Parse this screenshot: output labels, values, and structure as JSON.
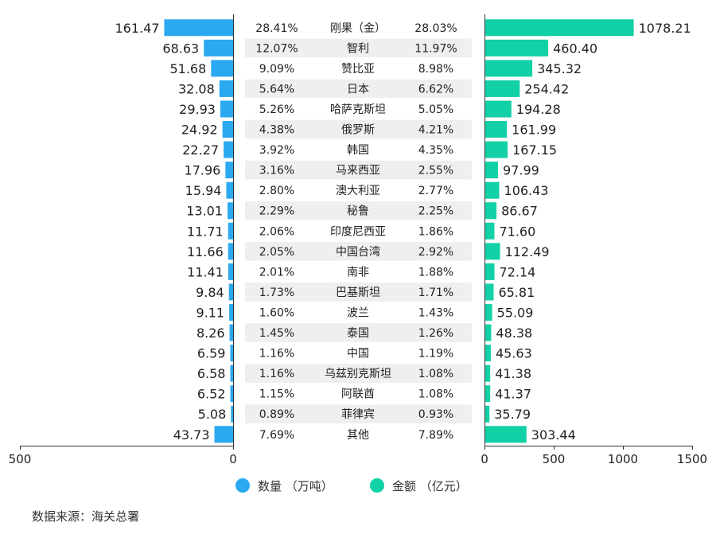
{
  "colors": {
    "quantity": "#2aa9f0",
    "amount": "#12d1a6",
    "stripe": "#efefef",
    "axis": "#333333",
    "text": "#222222"
  },
  "legend": {
    "quantity_label": "数量 （万吨）",
    "amount_label": "金额 （亿元）"
  },
  "source": "数据来源：海关总署",
  "chart_data": {
    "type": "bar",
    "layout": "butterfly",
    "categories": [
      "刚果（金）",
      "智利",
      "赞比亚",
      "日本",
      "哈萨克斯坦",
      "俄罗斯",
      "韩国",
      "马来西亚",
      "澳大利亚",
      "秘鲁",
      "印度尼西亚",
      "中国台湾",
      "南非",
      "巴基斯坦",
      "波兰",
      "泰国",
      "中国",
      "乌兹别克斯坦",
      "阿联酋",
      "菲律宾",
      "其他"
    ],
    "series": [
      {
        "name": "数量 （万吨）",
        "values": [
          161.47,
          68.63,
          51.68,
          32.08,
          29.93,
          24.92,
          22.27,
          17.96,
          15.94,
          13.01,
          11.71,
          11.66,
          11.41,
          9.84,
          9.11,
          8.26,
          6.59,
          6.58,
          6.52,
          5.08,
          43.73
        ],
        "share": [
          "28.41%",
          "12.07%",
          "9.09%",
          "5.64%",
          "5.26%",
          "4.38%",
          "3.92%",
          "3.16%",
          "2.80%",
          "2.29%",
          "2.06%",
          "2.05%",
          "2.01%",
          "1.73%",
          "1.60%",
          "1.45%",
          "1.16%",
          "1.16%",
          "1.15%",
          "0.89%",
          "7.69%"
        ]
      },
      {
        "name": "金额 （亿元）",
        "values": [
          1078.21,
          460.4,
          345.32,
          254.42,
          194.28,
          161.99,
          167.15,
          97.99,
          106.43,
          86.67,
          71.6,
          112.49,
          72.14,
          65.81,
          55.09,
          48.38,
          45.63,
          41.38,
          41.37,
          35.79,
          303.44
        ],
        "share": [
          "28.03%",
          "11.97%",
          "8.98%",
          "6.62%",
          "5.05%",
          "4.21%",
          "4.35%",
          "2.55%",
          "2.77%",
          "2.25%",
          "1.86%",
          "2.92%",
          "1.88%",
          "1.71%",
          "1.43%",
          "1.26%",
          "1.19%",
          "1.08%",
          "1.08%",
          "0.93%",
          "7.89%"
        ]
      }
    ],
    "left_axis": {
      "ticks": [
        500,
        0
      ],
      "range": [
        0,
        500
      ]
    },
    "right_axis": {
      "ticks": [
        0,
        500,
        1000,
        1500
      ],
      "range": [
        0,
        1500
      ]
    },
    "grid": false
  }
}
